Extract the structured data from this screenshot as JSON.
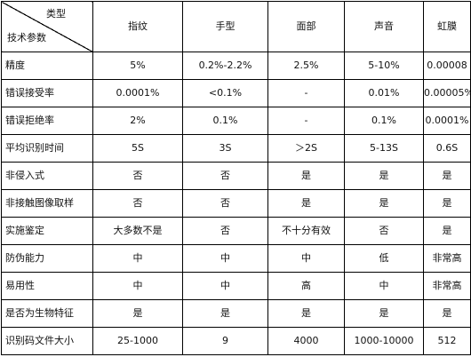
{
  "table": {
    "corner": {
      "top_label": "类型",
      "bottom_label": "技术参数"
    },
    "columns": [
      "指纹",
      "手型",
      "面部",
      "声音",
      "虹膜"
    ],
    "rows": [
      {
        "label": "精度",
        "values": [
          "5%",
          "0.2%-2.2%",
          "2.5%",
          "5-10%",
          "0.00008"
        ]
      },
      {
        "label": "错误接受率",
        "values": [
          "0.0001%",
          "<0.1%",
          "-",
          "0.01%",
          "0.00005%"
        ]
      },
      {
        "label": "错误拒绝率",
        "values": [
          "2%",
          "0.1%",
          "-",
          "0.1%",
          "0.0001%"
        ]
      },
      {
        "label": "平均识别时间",
        "values": [
          "5S",
          "3S",
          "＞2S",
          "5-13S",
          "0.6S"
        ]
      },
      {
        "label": "非侵入式",
        "values": [
          "否",
          "否",
          "是",
          "是",
          "是"
        ]
      },
      {
        "label": "非接触图像取样",
        "values": [
          "否",
          "否",
          "是",
          "是",
          "是"
        ]
      },
      {
        "label": "实施鉴定",
        "values": [
          "大多数不是",
          "否",
          "不十分有效",
          "否",
          "是"
        ]
      },
      {
        "label": "防伪能力",
        "values": [
          "中",
          "中",
          "中",
          "低",
          "非常高"
        ]
      },
      {
        "label": "易用性",
        "values": [
          "中",
          "中",
          "高",
          "中",
          "非常高"
        ]
      },
      {
        "label": "是否为生物特征",
        "values": [
          "是",
          "是",
          "是",
          "是",
          "是"
        ]
      },
      {
        "label": "识别码文件大小",
        "values": [
          "25-1000",
          "9",
          "4000",
          "1000-10000",
          "512"
        ]
      }
    ]
  }
}
